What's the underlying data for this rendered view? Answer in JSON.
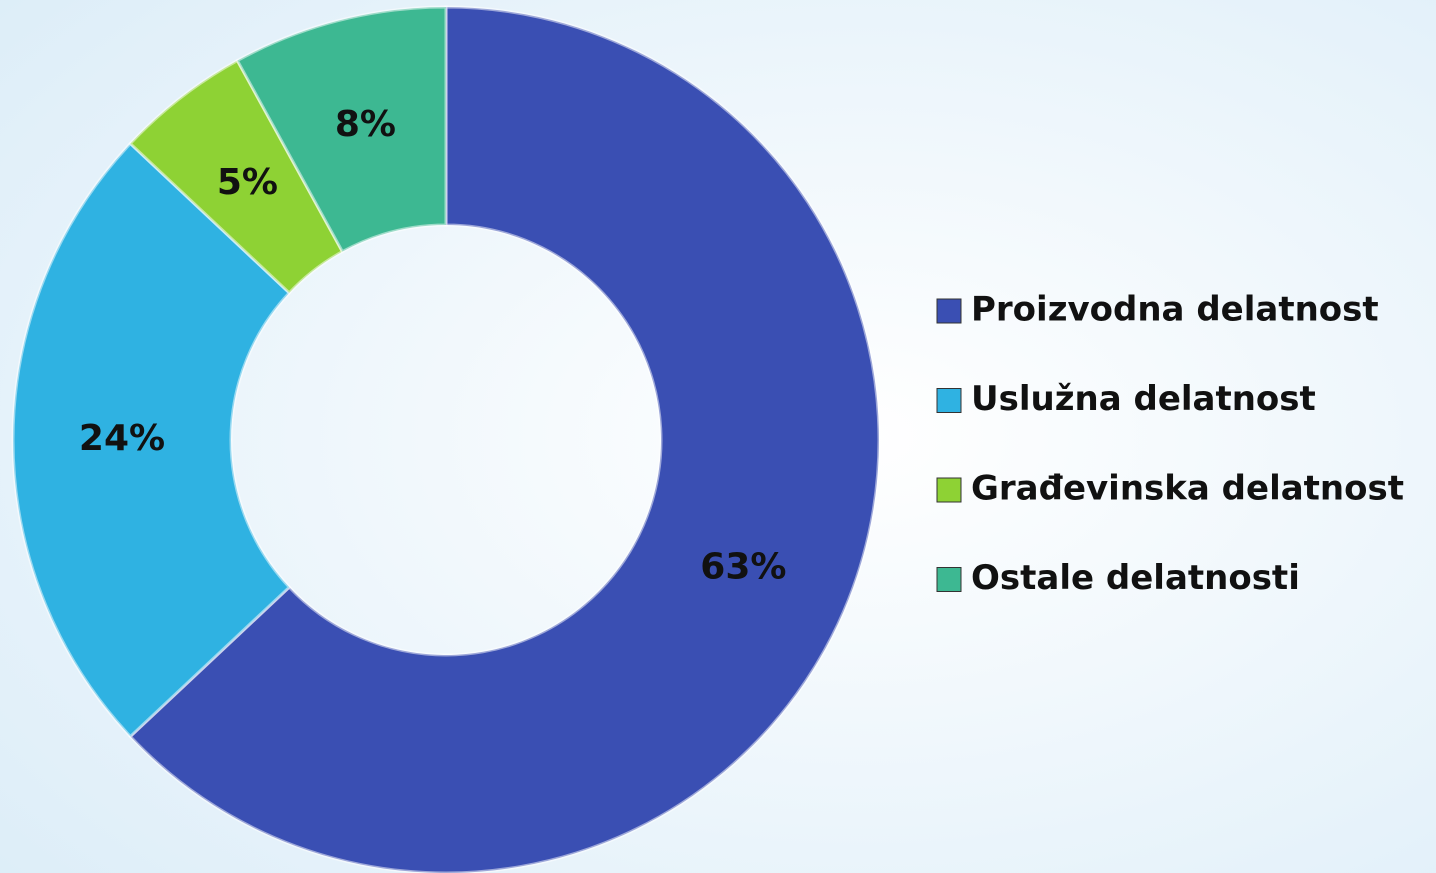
{
  "chart_data": {
    "type": "donut",
    "categories": [
      "Proizvodna delatnost",
      "Uslužna delatnost",
      "Građevinska delatnost",
      "Ostale delatnosti"
    ],
    "values": [
      63,
      24,
      5,
      8
    ],
    "value_labels": [
      "63%",
      "24%",
      "5%",
      "8%"
    ],
    "colors": [
      "#3a4fb3",
      "#2fb2e2",
      "#8ed234",
      "#3db892"
    ],
    "legend": "right"
  }
}
